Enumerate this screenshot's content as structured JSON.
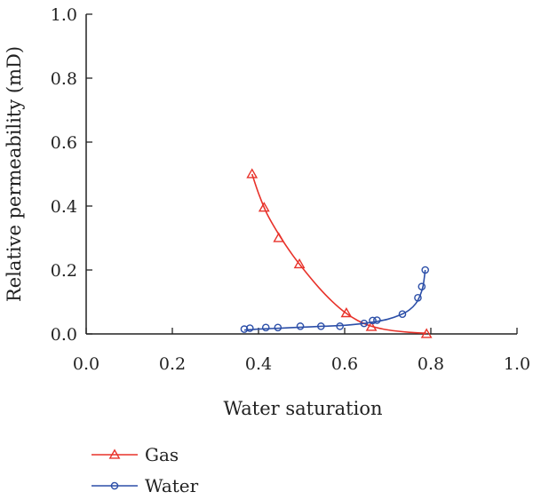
{
  "chart_data": {
    "type": "line",
    "title": "",
    "xlabel": "Water saturation",
    "ylabel": "Relative permeability (mD)",
    "xlim": [
      0.0,
      1.0
    ],
    "ylim": [
      0.0,
      1.0
    ],
    "x_ticks": [
      "0.0",
      "0.2",
      "0.4",
      "0.6",
      "0.8",
      "1.0"
    ],
    "y_ticks": [
      "0.0",
      "0.2",
      "0.4",
      "0.6",
      "0.8",
      "1.0"
    ],
    "grid": false,
    "legend_placement": "bottom-left, below plot",
    "series": [
      {
        "name": "Gas",
        "color": "#e8322a",
        "marker": "triangle-open",
        "points": [
          {
            "x": 0.385,
            "y": 0.5
          },
          {
            "x": 0.413,
            "y": 0.395
          },
          {
            "x": 0.447,
            "y": 0.3
          },
          {
            "x": 0.495,
            "y": 0.218
          },
          {
            "x": 0.604,
            "y": 0.065
          },
          {
            "x": 0.662,
            "y": 0.022
          },
          {
            "x": 0.79,
            "y": 0.0
          }
        ],
        "fit": [
          {
            "x": 0.385,
            "y": 0.5
          },
          {
            "x": 0.4,
            "y": 0.44
          },
          {
            "x": 0.42,
            "y": 0.375
          },
          {
            "x": 0.45,
            "y": 0.305
          },
          {
            "x": 0.48,
            "y": 0.245
          },
          {
            "x": 0.51,
            "y": 0.193
          },
          {
            "x": 0.54,
            "y": 0.145
          },
          {
            "x": 0.57,
            "y": 0.103
          },
          {
            "x": 0.6,
            "y": 0.068
          },
          {
            "x": 0.63,
            "y": 0.042
          },
          {
            "x": 0.66,
            "y": 0.025
          },
          {
            "x": 0.69,
            "y": 0.015
          },
          {
            "x": 0.72,
            "y": 0.009
          },
          {
            "x": 0.75,
            "y": 0.005
          },
          {
            "x": 0.79,
            "y": 0.002
          }
        ]
      },
      {
        "name": "Water",
        "color": "#2c4fa8",
        "marker": "circle-open",
        "points": [
          {
            "x": 0.367,
            "y": 0.015
          },
          {
            "x": 0.38,
            "y": 0.018
          },
          {
            "x": 0.417,
            "y": 0.02
          },
          {
            "x": 0.445,
            "y": 0.02
          },
          {
            "x": 0.497,
            "y": 0.024
          },
          {
            "x": 0.545,
            "y": 0.024
          },
          {
            "x": 0.589,
            "y": 0.024
          },
          {
            "x": 0.645,
            "y": 0.033
          },
          {
            "x": 0.665,
            "y": 0.042
          },
          {
            "x": 0.675,
            "y": 0.043
          },
          {
            "x": 0.734,
            "y": 0.062
          },
          {
            "x": 0.77,
            "y": 0.113
          },
          {
            "x": 0.779,
            "y": 0.148
          },
          {
            "x": 0.787,
            "y": 0.2
          }
        ],
        "fit": [
          {
            "x": 0.367,
            "y": 0.012
          },
          {
            "x": 0.4,
            "y": 0.015
          },
          {
            "x": 0.45,
            "y": 0.018
          },
          {
            "x": 0.5,
            "y": 0.021
          },
          {
            "x": 0.55,
            "y": 0.024
          },
          {
            "x": 0.6,
            "y": 0.027
          },
          {
            "x": 0.64,
            "y": 0.032
          },
          {
            "x": 0.67,
            "y": 0.038
          },
          {
            "x": 0.7,
            "y": 0.046
          },
          {
            "x": 0.73,
            "y": 0.06
          },
          {
            "x": 0.75,
            "y": 0.075
          },
          {
            "x": 0.765,
            "y": 0.095
          },
          {
            "x": 0.775,
            "y": 0.12
          },
          {
            "x": 0.782,
            "y": 0.15
          },
          {
            "x": 0.787,
            "y": 0.2
          }
        ]
      }
    ]
  }
}
